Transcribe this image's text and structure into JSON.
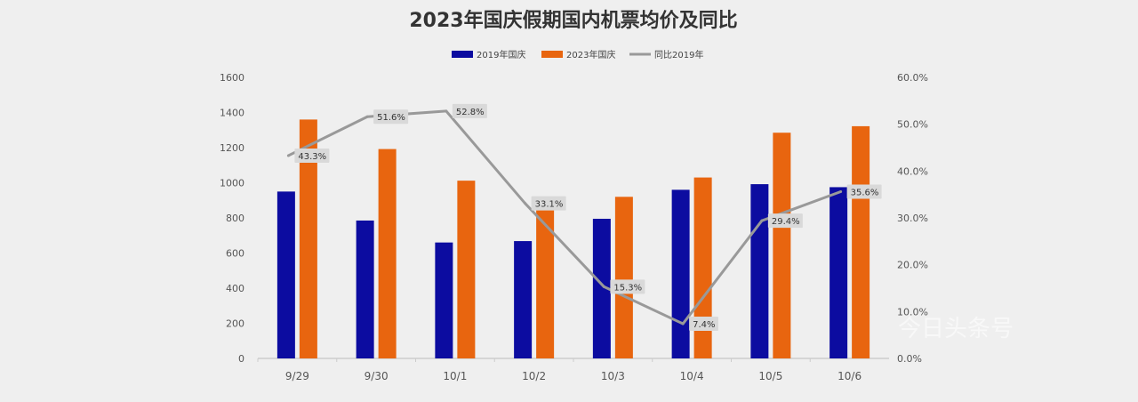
{
  "chart_data": {
    "type": "bar",
    "title": "2023年国庆假期国内机票均价及同比",
    "categories": [
      "9/29",
      "9/30",
      "10/1",
      "10/2",
      "10/3",
      "10/4",
      "10/5",
      "10/6"
    ],
    "series": [
      {
        "name": "2019年国庆",
        "type": "bar",
        "axis": "left",
        "color": "#0c0ca0",
        "values": [
          950,
          785,
          660,
          668,
          795,
          960,
          992,
          975
        ]
      },
      {
        "name": "2023年国庆",
        "type": "bar",
        "axis": "left",
        "color": "#e8650f",
        "values": [
          1360,
          1192,
          1012,
          880,
          920,
          1030,
          1285,
          1322
        ]
      },
      {
        "name": "同比2019年",
        "type": "line",
        "axis": "right",
        "color": "#999999",
        "values": [
          43.3,
          51.6,
          52.8,
          33.1,
          15.3,
          7.4,
          29.4,
          35.6
        ],
        "labels": [
          "43.3%",
          "51.6%",
          "52.8%",
          "33.1%",
          "15.3%",
          "7.4%",
          "29.4%",
          "35.6%"
        ]
      }
    ],
    "left_axis": {
      "ylim": [
        0,
        1600
      ],
      "ticks": [
        "0",
        "200",
        "400",
        "600",
        "800",
        "1000",
        "1200",
        "1400",
        "1600"
      ]
    },
    "right_axis": {
      "ylim": [
        0,
        60
      ],
      "ticks": [
        "0.0%",
        "10.0%",
        "20.0%",
        "30.0%",
        "40.0%",
        "50.0%",
        "60.0%"
      ]
    },
    "legend_position": "top-center",
    "grid": false
  },
  "watermark": "今日头条号"
}
